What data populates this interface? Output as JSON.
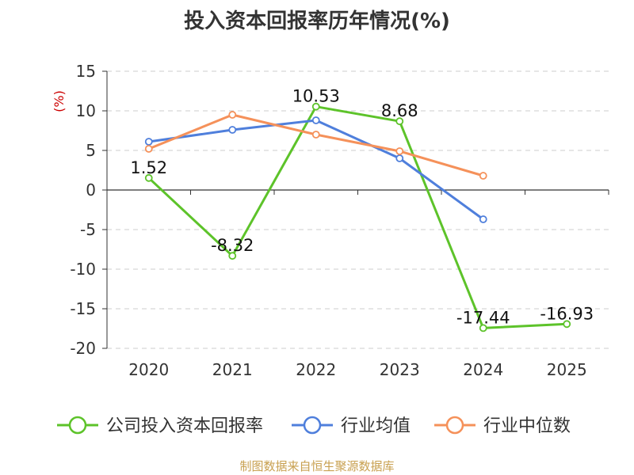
{
  "chart_data": {
    "type": "line",
    "title": "投入资本回报率历年情况(%)",
    "ylabel": "(%)",
    "xlabel": "",
    "categories": [
      "2020",
      "2021",
      "2022",
      "2023",
      "2024",
      "2025"
    ],
    "ylim": [
      -20,
      15
    ],
    "yticks": [
      15,
      10,
      5,
      0,
      -5,
      -10,
      -15,
      -20
    ],
    "grid": true,
    "legend_position": "bottom",
    "series": [
      {
        "name": "公司投入资本回报率",
        "color": "#5dc32a",
        "values": [
          1.52,
          -8.32,
          10.53,
          8.68,
          -17.44,
          -16.93
        ],
        "labels": [
          "1.52",
          "-8.32",
          "10.53",
          "8.68",
          "-17.44",
          "-16.93"
        ]
      },
      {
        "name": "行业均值",
        "color": "#4f7fdc",
        "values": [
          6.1,
          7.6,
          8.8,
          4.0,
          -3.7,
          null
        ],
        "labels": []
      },
      {
        "name": "行业中位数",
        "color": "#f5915a",
        "values": [
          5.2,
          9.5,
          7.0,
          4.9,
          1.8,
          null
        ],
        "labels": []
      }
    ]
  },
  "footer": {
    "source": "制图数据来自恒生聚源数据库"
  }
}
